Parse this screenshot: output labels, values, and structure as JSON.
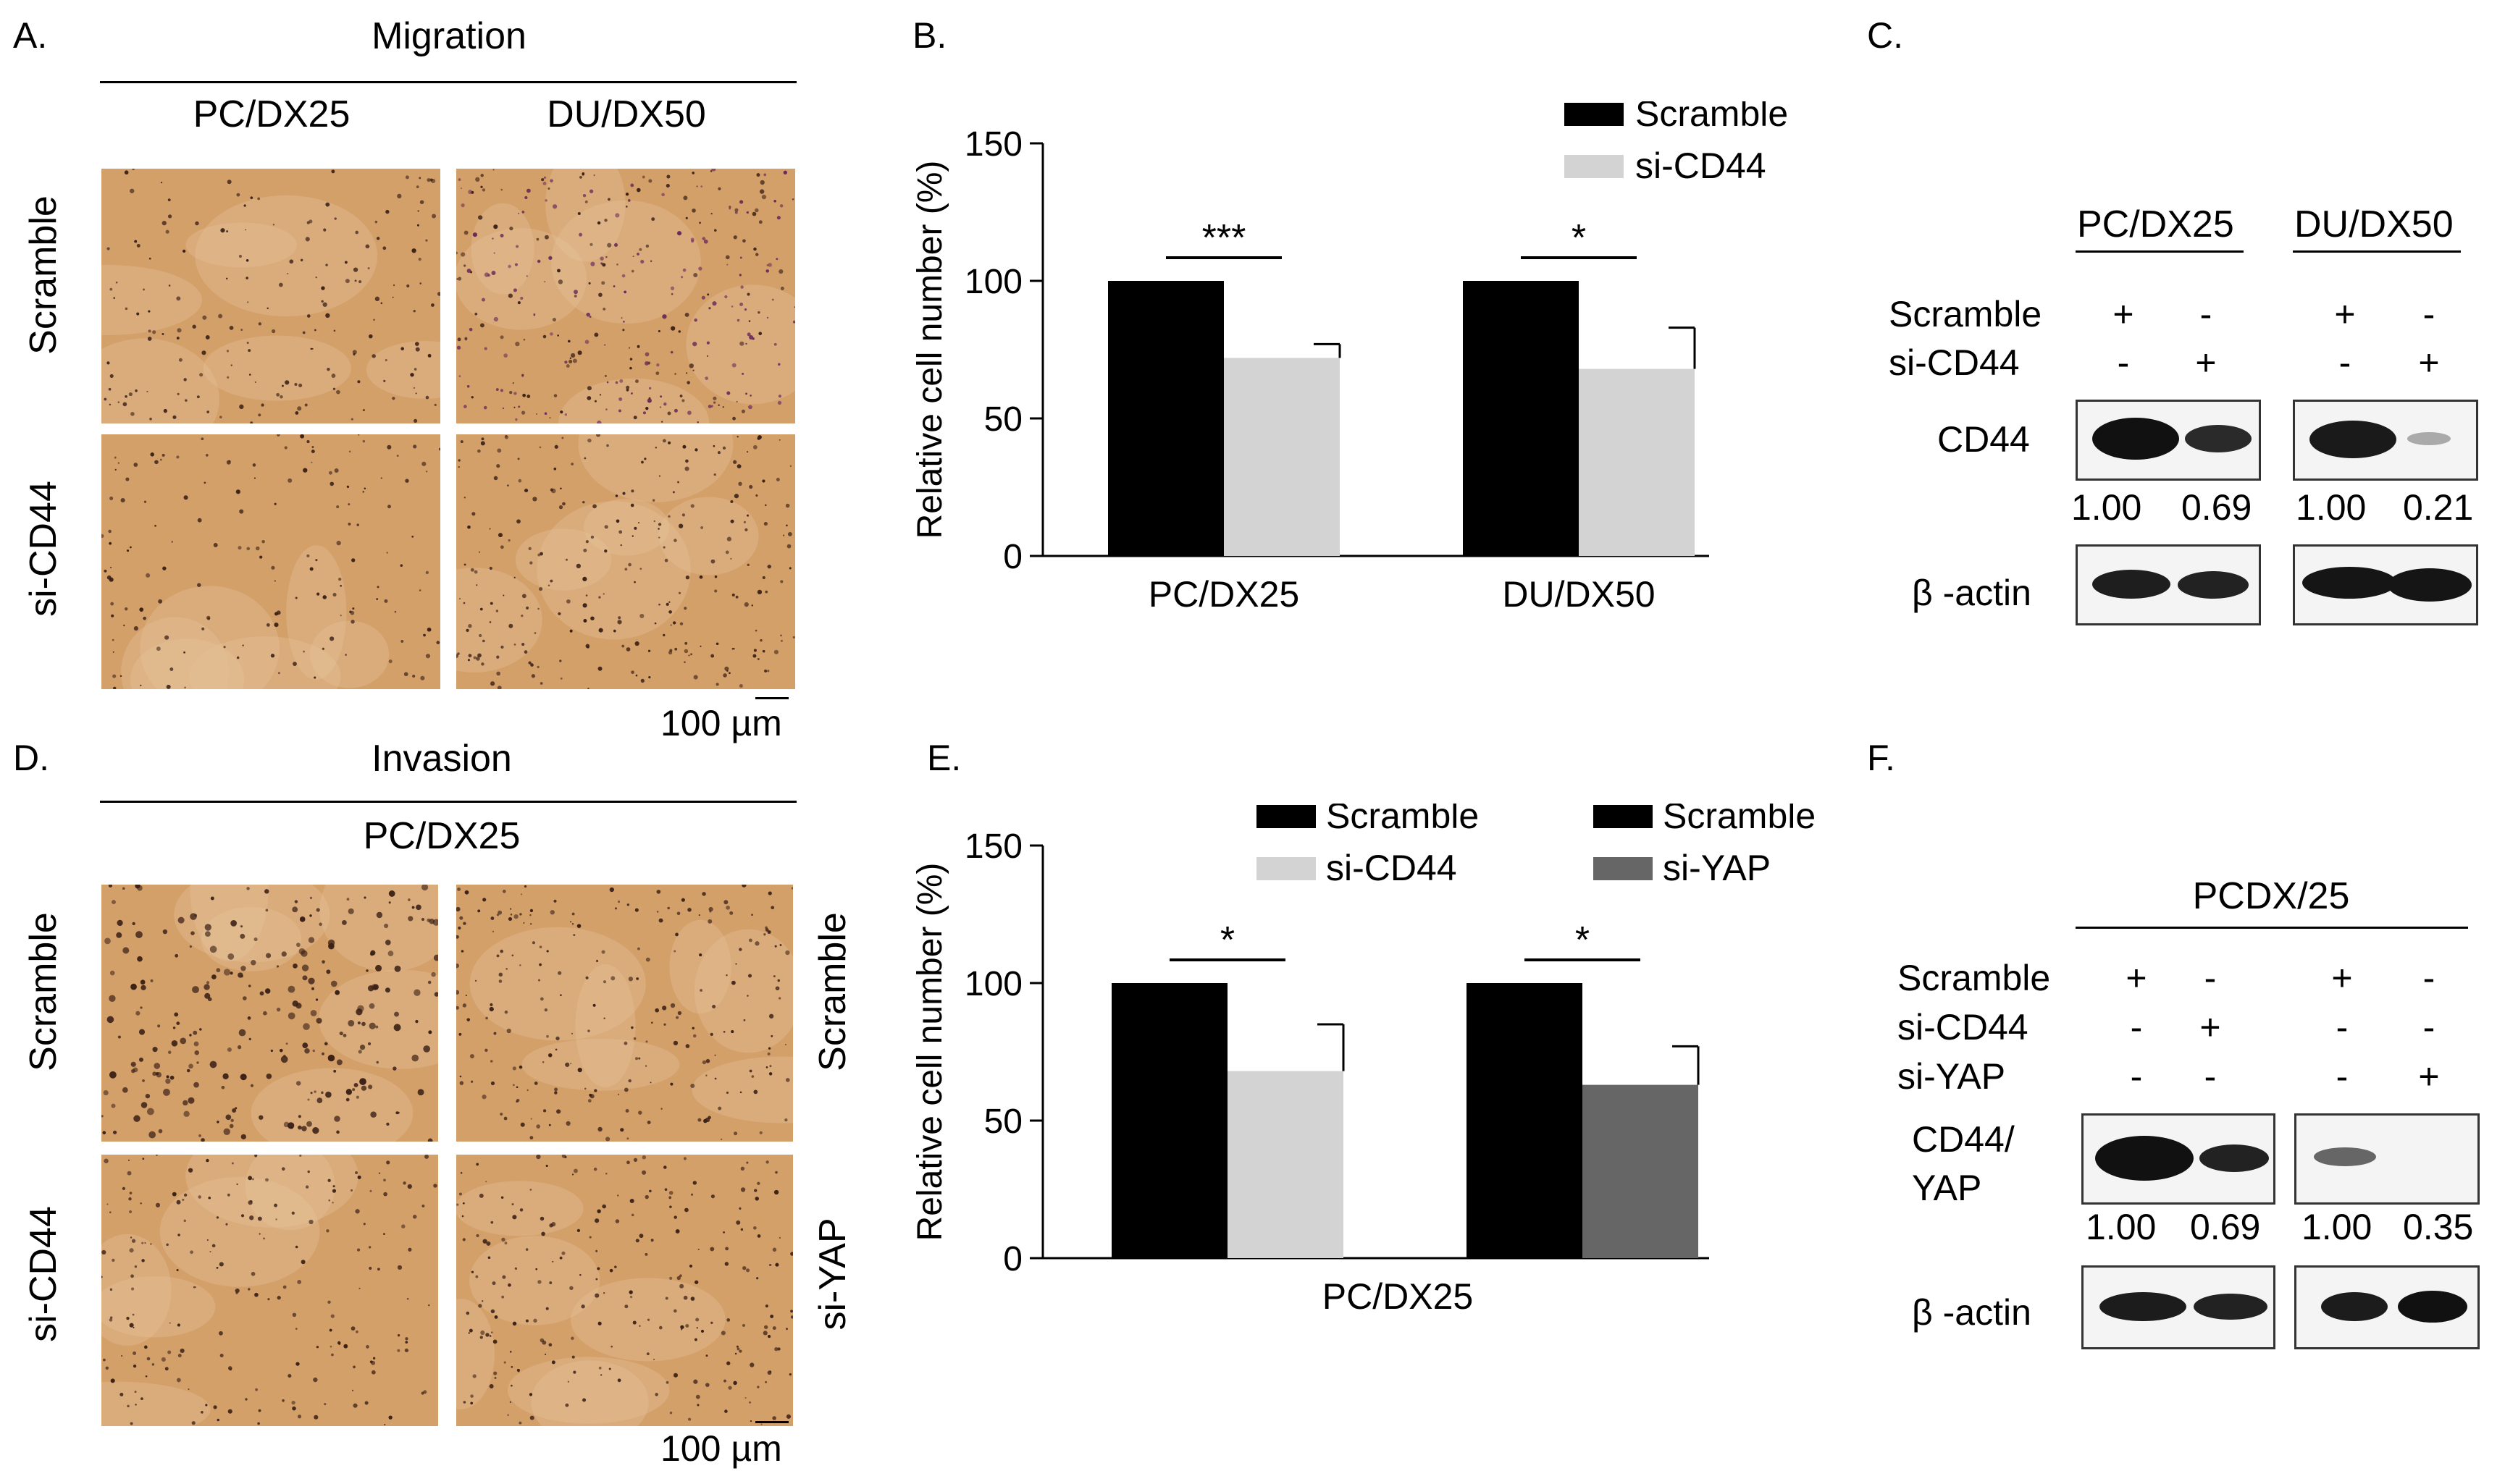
{
  "panels": {
    "A": {
      "label": "A.",
      "title": "Migration",
      "col_labels": [
        "PC/DX25",
        "DU/DX50"
      ],
      "row_labels": [
        "Scramble",
        "si-CD44"
      ],
      "scale_bar": "100 µm"
    },
    "B": {
      "label": "B."
    },
    "C": {
      "label": "C.",
      "groups": [
        "PC/DX25",
        "DU/DX50"
      ],
      "conditions": [
        {
          "name": "Scramble",
          "signs": [
            "+",
            "-",
            "+",
            "-"
          ]
        },
        {
          "name": "si-CD44",
          "signs": [
            "-",
            "+",
            "-",
            "+"
          ]
        }
      ],
      "proteins": [
        "CD44",
        "β -actin"
      ],
      "quant": [
        "1.00",
        "0.69",
        "1.00",
        "0.21"
      ]
    },
    "D": {
      "label": "D.",
      "title": "Invasion",
      "col_label": "PC/DX25",
      "row_labels_left": [
        "Scramble",
        "si-CD44"
      ],
      "row_labels_right": [
        "Scramble",
        "si-YAP"
      ],
      "scale_bar": "100 µm"
    },
    "E": {
      "label": "E."
    },
    "F": {
      "label": "F.",
      "group": "PCDX/25",
      "conditions": [
        {
          "name": "Scramble",
          "signs": [
            "+",
            "-",
            "+",
            "-"
          ]
        },
        {
          "name": "si-CD44",
          "signs": [
            "-",
            "+",
            "-",
            "-"
          ]
        },
        {
          "name": "si-YAP",
          "signs": [
            "-",
            "-",
            "-",
            "+"
          ]
        }
      ],
      "proteins": [
        "CD44/",
        "YAP",
        "β -actin"
      ],
      "quant": [
        "1.00",
        "0.69",
        "1.00",
        "0.35"
      ]
    }
  },
  "chart_data": [
    {
      "type": "bar",
      "panel": "B",
      "categories": [
        "PC/DX25",
        "DU/DX50"
      ],
      "series": [
        {
          "name": "Scramble",
          "color": "#000000",
          "values": [
            100,
            100
          ],
          "errors": [
            0,
            0
          ]
        },
        {
          "name": "si-CD44",
          "color": "#d3d3d3",
          "values": [
            72,
            68
          ],
          "errors": [
            5,
            15
          ]
        }
      ],
      "significance": [
        "***",
        "*"
      ],
      "ylabel": "Relative cell number (%)",
      "ylim": [
        0,
        150
      ],
      "yticks": [
        0,
        50,
        100,
        150
      ],
      "legend": "top-right"
    },
    {
      "type": "bar",
      "panel": "E",
      "categories": [
        "PC/DX25"
      ],
      "groups": [
        {
          "bars": [
            {
              "series": "Scramble",
              "value": 100,
              "error": 0
            },
            {
              "series": "si-CD44",
              "value": 68,
              "error": 17
            }
          ],
          "significance": "*"
        },
        {
          "bars": [
            {
              "series": "Scramble",
              "value": 100,
              "error": 0
            },
            {
              "series": "si-YAP",
              "value": 63,
              "error": 14
            }
          ],
          "significance": "*"
        }
      ],
      "series": [
        {
          "name": "Scramble",
          "color": "#000000"
        },
        {
          "name": "si-CD44",
          "color": "#d3d3d3"
        },
        {
          "name": "Scramble",
          "color": "#000000"
        },
        {
          "name": "si-YAP",
          "color": "#666666"
        }
      ],
      "ylabel": "Relative cell number (%)",
      "ylim": [
        0,
        150
      ],
      "yticks": [
        0,
        50,
        100,
        150
      ],
      "legend": "top"
    }
  ],
  "colors": {
    "tissue_bg": "#d4a06a",
    "cell_dark": "#3a2016",
    "cell_purple": "#6a2a5a"
  }
}
